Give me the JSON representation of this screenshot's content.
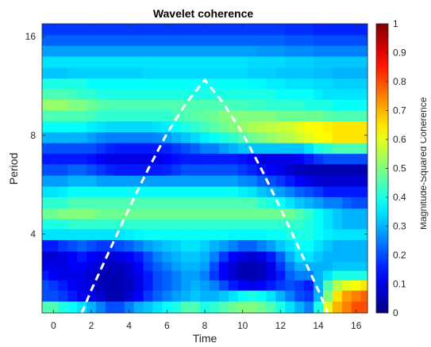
{
  "chart_data": {
    "type": "heatmap",
    "title": "Wavelet coherence",
    "xlabel": "Time",
    "ylabel": "Period",
    "colorbar_label": "Magnitude-Squared Coherence",
    "xlim": [
      -0.6,
      16.6
    ],
    "ylim": [
      2.3,
      17.5
    ],
    "y_scale": "log2",
    "x_ticks": [
      0,
      2,
      4,
      6,
      8,
      10,
      12,
      14,
      16
    ],
    "x_tick_labels": [
      "0",
      "2",
      "4",
      "6",
      "8",
      "10",
      "12",
      "14",
      "16"
    ],
    "y_ticks": [
      4,
      8,
      16
    ],
    "y_tick_labels": [
      "4",
      "8",
      "16"
    ],
    "colorbar_ticks": [
      0,
      0.1,
      0.2,
      0.3,
      0.4,
      0.5,
      0.6,
      0.7,
      0.8,
      0.9,
      1
    ],
    "colorbar_tick_labels": [
      "0",
      "0.1",
      "0.2",
      "0.3",
      "0.4",
      "0.5",
      "0.6",
      "0.7",
      "0.8",
      "0.9",
      "1"
    ],
    "clim": [
      0,
      1
    ],
    "colormap": "jet",
    "grid": false,
    "cone_of_influence": {
      "style": "white-dashed",
      "x": [
        1.5,
        2,
        3,
        4,
        5,
        6,
        7,
        8,
        9,
        10,
        11,
        12,
        13,
        14,
        14.5
      ],
      "y": [
        2.3,
        2.7,
        3.6,
        4.8,
        6.3,
        8.1,
        10.0,
        11.8,
        10.0,
        8.1,
        6.3,
        4.8,
        3.6,
        2.7,
        2.3
      ]
    },
    "time_bins": [
      -0.5,
      0,
      0.5,
      1,
      1.5,
      2,
      2.5,
      3,
      3.5,
      4,
      4.5,
      5,
      5.5,
      6,
      6.5,
      7,
      7.5,
      8,
      8.5,
      9,
      9.5,
      10,
      10.5,
      11,
      11.5,
      12,
      12.5,
      13,
      13.5,
      14,
      14.5,
      15,
      15.5,
      16,
      16.5
    ],
    "period_rows": [
      2.4,
      2.6,
      2.8,
      3.0,
      3.2,
      3.4,
      3.7,
      4.0,
      4.3,
      4.6,
      5.0,
      5.4,
      5.8,
      6.3,
      6.8,
      7.3,
      7.9,
      8.5,
      9.2,
      9.9,
      10.7,
      11.5,
      12.4,
      13.4,
      14.5,
      15.6,
      16.8
    ],
    "coherence": [
      [
        0.45,
        0.45,
        0.4,
        0.38,
        0.35,
        0.3,
        0.25,
        0.2,
        0.2,
        0.25,
        0.3,
        0.32,
        0.35,
        0.38,
        0.4,
        0.45,
        0.45,
        0.4,
        0.42,
        0.45,
        0.48,
        0.5,
        0.5,
        0.48,
        0.45,
        0.4,
        0.35,
        0.3,
        0.25,
        0.4,
        0.6,
        0.7,
        0.75,
        0.8,
        0.8
      ],
      [
        0.2,
        0.2,
        0.18,
        0.15,
        0.12,
        0.1,
        0.08,
        0.05,
        0.05,
        0.08,
        0.12,
        0.18,
        0.22,
        0.25,
        0.28,
        0.3,
        0.32,
        0.3,
        0.3,
        0.32,
        0.35,
        0.38,
        0.4,
        0.38,
        0.35,
        0.3,
        0.25,
        0.2,
        0.18,
        0.3,
        0.5,
        0.65,
        0.72,
        0.75,
        0.78
      ],
      [
        0.2,
        0.18,
        0.15,
        0.12,
        0.1,
        0.08,
        0.06,
        0.05,
        0.05,
        0.06,
        0.1,
        0.15,
        0.2,
        0.22,
        0.25,
        0.28,
        0.3,
        0.28,
        0.25,
        0.2,
        0.15,
        0.12,
        0.1,
        0.12,
        0.15,
        0.18,
        0.2,
        0.18,
        0.15,
        0.3,
        0.45,
        0.55,
        0.6,
        0.62,
        0.65
      ],
      [
        0.15,
        0.12,
        0.1,
        0.1,
        0.1,
        0.08,
        0.05,
        0.05,
        0.05,
        0.08,
        0.1,
        0.15,
        0.2,
        0.22,
        0.25,
        0.28,
        0.28,
        0.25,
        0.18,
        0.12,
        0.08,
        0.05,
        0.05,
        0.06,
        0.1,
        0.15,
        0.22,
        0.25,
        0.25,
        0.3,
        0.35,
        0.4,
        0.4,
        0.4,
        0.4
      ],
      [
        0.1,
        0.1,
        0.1,
        0.12,
        0.12,
        0.1,
        0.08,
        0.06,
        0.06,
        0.08,
        0.12,
        0.18,
        0.22,
        0.25,
        0.28,
        0.3,
        0.3,
        0.28,
        0.2,
        0.12,
        0.08,
        0.05,
        0.05,
        0.06,
        0.1,
        0.18,
        0.25,
        0.3,
        0.3,
        0.3,
        0.3,
        0.32,
        0.32,
        0.32,
        0.32
      ],
      [
        0.08,
        0.08,
        0.1,
        0.12,
        0.15,
        0.12,
        0.1,
        0.08,
        0.1,
        0.12,
        0.15,
        0.2,
        0.25,
        0.28,
        0.3,
        0.32,
        0.32,
        0.3,
        0.25,
        0.18,
        0.12,
        0.1,
        0.08,
        0.1,
        0.15,
        0.22,
        0.3,
        0.35,
        0.35,
        0.32,
        0.3,
        0.3,
        0.3,
        0.3,
        0.3
      ],
      [
        0.15,
        0.15,
        0.18,
        0.2,
        0.22,
        0.2,
        0.18,
        0.18,
        0.2,
        0.22,
        0.25,
        0.28,
        0.3,
        0.32,
        0.33,
        0.35,
        0.35,
        0.33,
        0.3,
        0.28,
        0.25,
        0.22,
        0.22,
        0.25,
        0.28,
        0.32,
        0.35,
        0.38,
        0.38,
        0.35,
        0.32,
        0.3,
        0.3,
        0.3,
        0.3
      ],
      [
        0.35,
        0.35,
        0.35,
        0.35,
        0.35,
        0.35,
        0.35,
        0.35,
        0.35,
        0.36,
        0.37,
        0.38,
        0.38,
        0.38,
        0.38,
        0.38,
        0.38,
        0.38,
        0.38,
        0.38,
        0.37,
        0.37,
        0.37,
        0.37,
        0.38,
        0.38,
        0.4,
        0.4,
        0.4,
        0.38,
        0.36,
        0.35,
        0.35,
        0.35,
        0.35
      ],
      [
        0.4,
        0.4,
        0.4,
        0.42,
        0.42,
        0.42,
        0.42,
        0.42,
        0.42,
        0.42,
        0.42,
        0.42,
        0.42,
        0.42,
        0.42,
        0.42,
        0.42,
        0.42,
        0.42,
        0.42,
        0.42,
        0.42,
        0.42,
        0.42,
        0.42,
        0.42,
        0.42,
        0.42,
        0.4,
        0.38,
        0.35,
        0.32,
        0.3,
        0.3,
        0.3
      ],
      [
        0.48,
        0.48,
        0.5,
        0.5,
        0.5,
        0.5,
        0.48,
        0.48,
        0.48,
        0.48,
        0.48,
        0.48,
        0.48,
        0.48,
        0.48,
        0.48,
        0.48,
        0.48,
        0.48,
        0.48,
        0.48,
        0.48,
        0.48,
        0.48,
        0.48,
        0.48,
        0.48,
        0.45,
        0.42,
        0.38,
        0.35,
        0.32,
        0.3,
        0.3,
        0.3
      ],
      [
        0.42,
        0.42,
        0.42,
        0.45,
        0.45,
        0.45,
        0.45,
        0.45,
        0.45,
        0.45,
        0.45,
        0.45,
        0.45,
        0.45,
        0.45,
        0.45,
        0.45,
        0.45,
        0.45,
        0.45,
        0.45,
        0.45,
        0.45,
        0.42,
        0.4,
        0.38,
        0.35,
        0.32,
        0.3,
        0.28,
        0.25,
        0.25,
        0.22,
        0.2,
        0.2
      ],
      [
        0.35,
        0.35,
        0.36,
        0.38,
        0.38,
        0.38,
        0.38,
        0.38,
        0.38,
        0.38,
        0.38,
        0.38,
        0.38,
        0.38,
        0.38,
        0.38,
        0.38,
        0.38,
        0.38,
        0.38,
        0.38,
        0.36,
        0.35,
        0.32,
        0.3,
        0.28,
        0.25,
        0.22,
        0.2,
        0.18,
        0.15,
        0.15,
        0.15,
        0.15,
        0.15
      ],
      [
        0.28,
        0.28,
        0.28,
        0.3,
        0.3,
        0.3,
        0.28,
        0.28,
        0.28,
        0.28,
        0.28,
        0.28,
        0.28,
        0.28,
        0.28,
        0.28,
        0.28,
        0.28,
        0.28,
        0.28,
        0.28,
        0.26,
        0.25,
        0.22,
        0.2,
        0.18,
        0.15,
        0.12,
        0.1,
        0.08,
        0.08,
        0.08,
        0.08,
        0.08,
        0.08
      ],
      [
        0.2,
        0.2,
        0.2,
        0.22,
        0.22,
        0.2,
        0.18,
        0.16,
        0.15,
        0.15,
        0.15,
        0.15,
        0.15,
        0.16,
        0.18,
        0.2,
        0.2,
        0.2,
        0.2,
        0.2,
        0.2,
        0.18,
        0.16,
        0.14,
        0.12,
        0.1,
        0.08,
        0.06,
        0.05,
        0.05,
        0.05,
        0.05,
        0.05,
        0.05,
        0.05
      ],
      [
        0.15,
        0.15,
        0.15,
        0.15,
        0.15,
        0.14,
        0.12,
        0.1,
        0.1,
        0.1,
        0.1,
        0.1,
        0.1,
        0.12,
        0.14,
        0.15,
        0.15,
        0.15,
        0.15,
        0.15,
        0.15,
        0.14,
        0.12,
        0.1,
        0.1,
        0.1,
        0.1,
        0.12,
        0.15,
        0.18,
        0.2,
        0.2,
        0.2,
        0.2,
        0.2
      ],
      [
        0.2,
        0.2,
        0.2,
        0.2,
        0.2,
        0.2,
        0.18,
        0.16,
        0.15,
        0.15,
        0.15,
        0.15,
        0.15,
        0.16,
        0.18,
        0.2,
        0.22,
        0.25,
        0.25,
        0.28,
        0.3,
        0.32,
        0.32,
        0.32,
        0.32,
        0.32,
        0.32,
        0.32,
        0.35,
        0.4,
        0.42,
        0.45,
        0.45,
        0.45,
        0.45
      ],
      [
        0.3,
        0.3,
        0.3,
        0.3,
        0.3,
        0.28,
        0.26,
        0.25,
        0.25,
        0.25,
        0.25,
        0.25,
        0.26,
        0.28,
        0.3,
        0.32,
        0.34,
        0.36,
        0.38,
        0.4,
        0.42,
        0.45,
        0.48,
        0.5,
        0.52,
        0.54,
        0.55,
        0.58,
        0.6,
        0.62,
        0.63,
        0.65,
        0.65,
        0.65,
        0.65
      ],
      [
        0.38,
        0.38,
        0.38,
        0.38,
        0.38,
        0.36,
        0.35,
        0.34,
        0.34,
        0.34,
        0.34,
        0.34,
        0.35,
        0.36,
        0.38,
        0.4,
        0.42,
        0.44,
        0.46,
        0.48,
        0.5,
        0.52,
        0.54,
        0.55,
        0.56,
        0.57,
        0.58,
        0.6,
        0.62,
        0.63,
        0.64,
        0.65,
        0.65,
        0.65,
        0.65
      ],
      [
        0.45,
        0.45,
        0.45,
        0.45,
        0.45,
        0.44,
        0.42,
        0.42,
        0.42,
        0.42,
        0.42,
        0.42,
        0.42,
        0.42,
        0.44,
        0.45,
        0.46,
        0.47,
        0.48,
        0.5,
        0.5,
        0.5,
        0.5,
        0.5,
        0.5,
        0.48,
        0.48,
        0.48,
        0.48,
        0.48,
        0.46,
        0.45,
        0.45,
        0.45,
        0.45
      ],
      [
        0.52,
        0.52,
        0.52,
        0.5,
        0.5,
        0.48,
        0.46,
        0.45,
        0.45,
        0.45,
        0.45,
        0.45,
        0.45,
        0.45,
        0.45,
        0.45,
        0.45,
        0.45,
        0.45,
        0.45,
        0.44,
        0.44,
        0.43,
        0.43,
        0.42,
        0.42,
        0.42,
        0.42,
        0.4,
        0.4,
        0.4,
        0.38,
        0.38,
        0.38,
        0.38
      ],
      [
        0.45,
        0.45,
        0.45,
        0.44,
        0.42,
        0.42,
        0.4,
        0.4,
        0.4,
        0.4,
        0.4,
        0.4,
        0.4,
        0.4,
        0.4,
        0.4,
        0.4,
        0.4,
        0.4,
        0.4,
        0.4,
        0.4,
        0.4,
        0.4,
        0.4,
        0.38,
        0.38,
        0.38,
        0.38,
        0.36,
        0.35,
        0.35,
        0.35,
        0.35,
        0.35
      ],
      [
        0.4,
        0.4,
        0.4,
        0.4,
        0.4,
        0.38,
        0.38,
        0.38,
        0.38,
        0.38,
        0.38,
        0.38,
        0.38,
        0.38,
        0.38,
        0.38,
        0.38,
        0.38,
        0.38,
        0.38,
        0.38,
        0.38,
        0.37,
        0.37,
        0.36,
        0.36,
        0.35,
        0.35,
        0.35,
        0.34,
        0.34,
        0.33,
        0.33,
        0.33,
        0.33
      ],
      [
        0.32,
        0.32,
        0.32,
        0.33,
        0.33,
        0.33,
        0.33,
        0.33,
        0.33,
        0.33,
        0.33,
        0.34,
        0.34,
        0.34,
        0.34,
        0.34,
        0.34,
        0.34,
        0.34,
        0.34,
        0.34,
        0.34,
        0.33,
        0.33,
        0.33,
        0.32,
        0.32,
        0.32,
        0.32,
        0.31,
        0.31,
        0.3,
        0.3,
        0.3,
        0.3
      ],
      [
        0.35,
        0.35,
        0.35,
        0.35,
        0.35,
        0.35,
        0.35,
        0.35,
        0.35,
        0.35,
        0.35,
        0.35,
        0.35,
        0.35,
        0.35,
        0.35,
        0.35,
        0.35,
        0.35,
        0.35,
        0.35,
        0.35,
        0.34,
        0.34,
        0.34,
        0.34,
        0.33,
        0.33,
        0.33,
        0.32,
        0.32,
        0.32,
        0.32,
        0.32,
        0.32
      ],
      [
        0.28,
        0.28,
        0.28,
        0.28,
        0.28,
        0.28,
        0.28,
        0.28,
        0.28,
        0.28,
        0.28,
        0.28,
        0.28,
        0.28,
        0.28,
        0.28,
        0.28,
        0.28,
        0.28,
        0.28,
        0.28,
        0.28,
        0.28,
        0.27,
        0.27,
        0.27,
        0.26,
        0.26,
        0.26,
        0.25,
        0.25,
        0.25,
        0.25,
        0.25,
        0.25
      ],
      [
        0.22,
        0.22,
        0.22,
        0.22,
        0.22,
        0.22,
        0.22,
        0.22,
        0.22,
        0.22,
        0.22,
        0.22,
        0.22,
        0.22,
        0.22,
        0.22,
        0.22,
        0.22,
        0.22,
        0.22,
        0.22,
        0.22,
        0.22,
        0.22,
        0.22,
        0.22,
        0.21,
        0.21,
        0.21,
        0.2,
        0.2,
        0.2,
        0.2,
        0.2,
        0.2
      ],
      [
        0.18,
        0.18,
        0.18,
        0.18,
        0.18,
        0.18,
        0.18,
        0.18,
        0.18,
        0.18,
        0.18,
        0.18,
        0.18,
        0.18,
        0.18,
        0.18,
        0.18,
        0.18,
        0.18,
        0.18,
        0.18,
        0.18,
        0.18,
        0.18,
        0.18,
        0.18,
        0.17,
        0.17,
        0.17,
        0.16,
        0.16,
        0.16,
        0.16,
        0.16,
        0.16
      ]
    ]
  }
}
